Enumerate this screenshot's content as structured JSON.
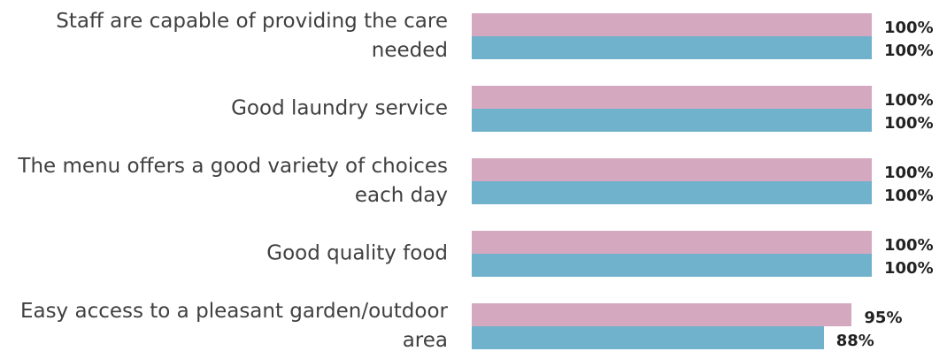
{
  "chart_data": {
    "type": "bar",
    "orientation": "horizontal",
    "categories": [
      "Staff are capable of providing the care needed",
      "Good laundry service",
      "The menu offers a good variety of choices each day",
      "Good quality food",
      "Easy access to a pleasant garden/outdoor area"
    ],
    "xlim": [
      0,
      100
    ],
    "series": [
      {
        "color": "#d4a9bf",
        "values": [
          100,
          100,
          100,
          100,
          95
        ],
        "value_labels": [
          "100%",
          "100%",
          "100%",
          "100%",
          "95%"
        ]
      },
      {
        "color": "#70b1cc",
        "values": [
          100,
          100,
          100,
          100,
          88
        ],
        "value_labels": [
          "100%",
          "100%",
          "100%",
          "100%",
          "88%"
        ]
      }
    ]
  }
}
